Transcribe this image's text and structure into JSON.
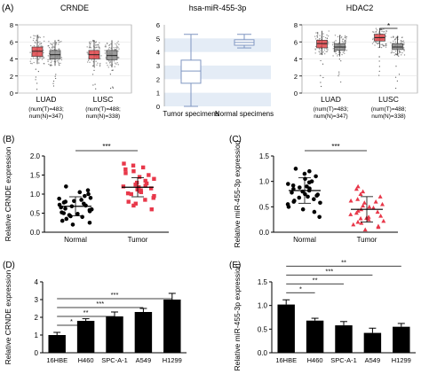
{
  "panel_labels": [
    "(A)",
    "(B)",
    "(C)",
    "(D)",
    "(E)"
  ],
  "colors": {
    "tumor": "#e2474b",
    "normal": "#8a8a8a",
    "red_points": "#e8384a",
    "black": "#000000",
    "box_blue": "#7f96c2",
    "band_blue": "#e4ecf6"
  },
  "chart_data": [
    {
      "id": "A1",
      "type": "box",
      "title": "CRNDE",
      "ylim": [
        0,
        8
      ],
      "yticks": [
        0,
        2,
        4,
        6,
        8
      ],
      "groups": [
        {
          "label": "LUAD",
          "sublabel": [
            "(num(T)=483;",
            "num(N)=347)"
          ],
          "boxes": [
            {
              "kind": "tumor",
              "q1": 4.3,
              "median": 4.9,
              "q3": 5.4,
              "whislo": 3.4,
              "whishi": 6.8
            },
            {
              "kind": "normal",
              "q1": 4.0,
              "median": 4.5,
              "q3": 5.0,
              "whislo": 3.2,
              "whishi": 6.2
            }
          ]
        },
        {
          "label": "LUSC",
          "sublabel": [
            "(num(T)=488;",
            "num(N)=338)"
          ],
          "boxes": [
            {
              "kind": "tumor",
              "q1": 4.0,
              "median": 4.5,
              "q3": 5.0,
              "whislo": 3.1,
              "whishi": 6.2
            },
            {
              "kind": "normal",
              "q1": 3.9,
              "median": 4.4,
              "q3": 5.0,
              "whislo": 3.0,
              "whishi": 6.2
            }
          ]
        }
      ]
    },
    {
      "id": "A2",
      "type": "box",
      "title": "hsa-miR-455-3p",
      "ylim": [
        0,
        6
      ],
      "yticks": [
        0,
        1,
        2,
        3,
        4,
        5,
        6
      ],
      "categories": [
        "Tumor specimens",
        "Normal specimens"
      ],
      "boxes": [
        {
          "q1": 1.7,
          "median": 2.6,
          "q3": 3.4,
          "whislo": 0.0,
          "whishi": 5.3
        },
        {
          "q1": 4.5,
          "median": 4.7,
          "q3": 4.9,
          "whislo": 4.3,
          "whishi": 5.3
        }
      ]
    },
    {
      "id": "A3",
      "type": "box",
      "title": "HDAC2",
      "ylim": [
        0,
        8
      ],
      "yticks": [
        0,
        2,
        4,
        6,
        8
      ],
      "significance": "*",
      "groups": [
        {
          "label": "LUAD",
          "sublabel": [
            "(num(T)=483;",
            "num(N)=347)"
          ],
          "boxes": [
            {
              "kind": "tumor",
              "q1": 5.3,
              "median": 5.8,
              "q3": 6.2,
              "whislo": 4.5,
              "whishi": 7.3
            },
            {
              "kind": "normal",
              "q1": 5.0,
              "median": 5.4,
              "q3": 5.8,
              "whislo": 4.3,
              "whishi": 6.8
            }
          ]
        },
        {
          "label": "LUSC",
          "sublabel": [
            "(num(T)=488;",
            "num(N)=338)"
          ],
          "boxes": [
            {
              "kind": "tumor",
              "q1": 6.1,
              "median": 6.5,
              "q3": 6.9,
              "whislo": 5.3,
              "whishi": 7.6
            },
            {
              "kind": "normal",
              "q1": 5.1,
              "median": 5.4,
              "q3": 5.8,
              "whislo": 4.4,
              "whishi": 6.7
            }
          ]
        }
      ]
    },
    {
      "id": "B",
      "type": "scatter",
      "ylabel": "Relative CRNDE expression",
      "ylim": [
        0,
        2.0
      ],
      "yticks": [
        "0.0",
        "0.5",
        "1.0",
        "1.5",
        "2.0"
      ],
      "categories": [
        "Normal",
        "Tumor"
      ],
      "significance": "***",
      "series": [
        {
          "values": [
            0.2,
            0.25,
            0.3,
            0.35,
            0.4,
            0.42,
            0.45,
            0.48,
            0.5,
            0.52,
            0.55,
            0.58,
            0.6,
            0.62,
            0.65,
            0.68,
            0.7,
            0.72,
            0.75,
            0.78,
            0.8,
            0.82,
            0.85,
            0.88,
            0.9,
            0.95,
            1.0,
            1.05,
            1.1,
            1.2
          ],
          "mean": 0.68
        },
        {
          "values": [
            0.6,
            0.7,
            0.75,
            0.8,
            0.85,
            0.9,
            0.95,
            1.0,
            1.02,
            1.05,
            1.08,
            1.1,
            1.12,
            1.15,
            1.18,
            1.2,
            1.22,
            1.25,
            1.28,
            1.3,
            1.35,
            1.4,
            1.45,
            1.5,
            1.55,
            1.6,
            1.65,
            1.7,
            1.75,
            1.8
          ],
          "mean": 1.18
        }
      ]
    },
    {
      "id": "C",
      "type": "scatter",
      "ylabel": "Relative miR-455-3p expression",
      "ylim": [
        0,
        1.5
      ],
      "yticks": [
        "0.0",
        "0.5",
        "1.0",
        "1.5"
      ],
      "categories": [
        "Normal",
        "Tumor"
      ],
      "significance": "***",
      "series": [
        {
          "values": [
            0.3,
            0.4,
            0.45,
            0.5,
            0.55,
            0.6,
            0.62,
            0.65,
            0.7,
            0.72,
            0.75,
            0.78,
            0.8,
            0.82,
            0.85,
            0.88,
            0.9,
            0.92,
            0.95,
            1.0,
            1.05,
            1.1,
            1.15,
            1.2,
            1.25,
            0.68,
            0.58,
            0.98,
            0.86,
            0.74
          ],
          "mean": 0.82
        },
        {
          "values": [
            0.05,
            0.1,
            0.12,
            0.15,
            0.18,
            0.2,
            0.22,
            0.25,
            0.28,
            0.3,
            0.32,
            0.35,
            0.38,
            0.4,
            0.42,
            0.45,
            0.48,
            0.5,
            0.52,
            0.55,
            0.58,
            0.6,
            0.62,
            0.65,
            0.7,
            0.75,
            0.8,
            0.85,
            0.9,
            0.27
          ],
          "mean": 0.45
        }
      ]
    },
    {
      "id": "D",
      "type": "bar",
      "ylabel": "Relative CRNDE expression",
      "ylim": [
        0,
        4
      ],
      "yticks": [
        0,
        1,
        2,
        3,
        4
      ],
      "categories": [
        "16HBE",
        "H460",
        "SPC-A-1",
        "A549",
        "H1299"
      ],
      "values": [
        1.0,
        1.8,
        2.05,
        2.3,
        3.0
      ],
      "errors": [
        0.15,
        0.12,
        0.25,
        0.2,
        0.35
      ],
      "comparisons": [
        {
          "to": 1,
          "label": "*"
        },
        {
          "to": 2,
          "label": "**"
        },
        {
          "to": 3,
          "label": "***"
        },
        {
          "to": 4,
          "label": "***"
        }
      ]
    },
    {
      "id": "E",
      "type": "bar",
      "ylabel": "Relative miR-455-3p expression",
      "ylim": [
        0,
        1.5
      ],
      "yticks": [
        "0.0",
        "0.5",
        "1.0",
        "1.5"
      ],
      "categories": [
        "16HBE",
        "H460",
        "SPC-A-1",
        "A549",
        "H1299"
      ],
      "values": [
        1.02,
        0.68,
        0.58,
        0.42,
        0.55
      ],
      "errors": [
        0.1,
        0.05,
        0.08,
        0.1,
        0.07
      ],
      "comparisons": [
        {
          "to": 1,
          "label": "*"
        },
        {
          "to": 2,
          "label": "**"
        },
        {
          "to": 3,
          "label": "***"
        },
        {
          "to": 4,
          "label": "**"
        }
      ]
    }
  ]
}
